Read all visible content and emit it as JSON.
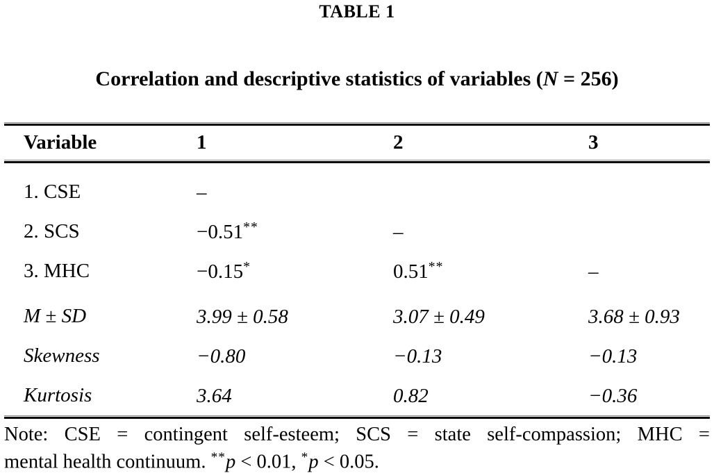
{
  "page": {
    "background_color": "#ffffff",
    "text_color": "#000000",
    "rule_color": "#000000",
    "rule_thin_color": "#8a8a8a"
  },
  "table_label": "TABLE 1",
  "caption": {
    "prefix": "Correlation and descriptive statistics of variables (",
    "n_symbol": "N",
    "suffix": " = 256)"
  },
  "table": {
    "header": {
      "variable": "Variable",
      "col1": "1",
      "col2": "2",
      "col3": "3"
    },
    "rows": [
      {
        "label": "1. CSE",
        "c1": "–",
        "c1sup": "",
        "c2": "",
        "c2sup": "",
        "c3": "",
        "c3sup": ""
      },
      {
        "label": "2. SCS",
        "c1": "−0.51",
        "c1sup": "**",
        "c2": "–",
        "c2sup": "",
        "c3": "",
        "c3sup": ""
      },
      {
        "label": "3. MHC",
        "c1": "−0.15",
        "c1sup": "*",
        "c2": "0.51",
        "c2sup": "**",
        "c3": "–",
        "c3sup": ""
      },
      {
        "label": "M ± SD",
        "c1": "3.99 ± 0.58",
        "c1sup": "",
        "c2": "3.07 ± 0.49",
        "c2sup": "",
        "c3": "3.68 ± 0.93",
        "c3sup": ""
      },
      {
        "label": "Skewness",
        "c1": "−0.80",
        "c1sup": "",
        "c2": "−0.13",
        "c2sup": "",
        "c3": "−0.13",
        "c3sup": ""
      },
      {
        "label": "Kurtosis",
        "c1": "3.64",
        "c1sup": "",
        "c2": "0.82",
        "c2sup": "",
        "c3": "−0.36",
        "c3sup": ""
      }
    ]
  },
  "note": {
    "line1": "Note: CSE = contingent self-esteem; SCS = state self-compassion; MHC =",
    "line2_prefix": "mental health continuum. ",
    "sig1_stars": "**",
    "sig1_p": "p",
    "sig1_rest": " < 0.01, ",
    "sig2_stars": "*",
    "sig2_p": "p",
    "sig2_rest": " < 0.05."
  }
}
